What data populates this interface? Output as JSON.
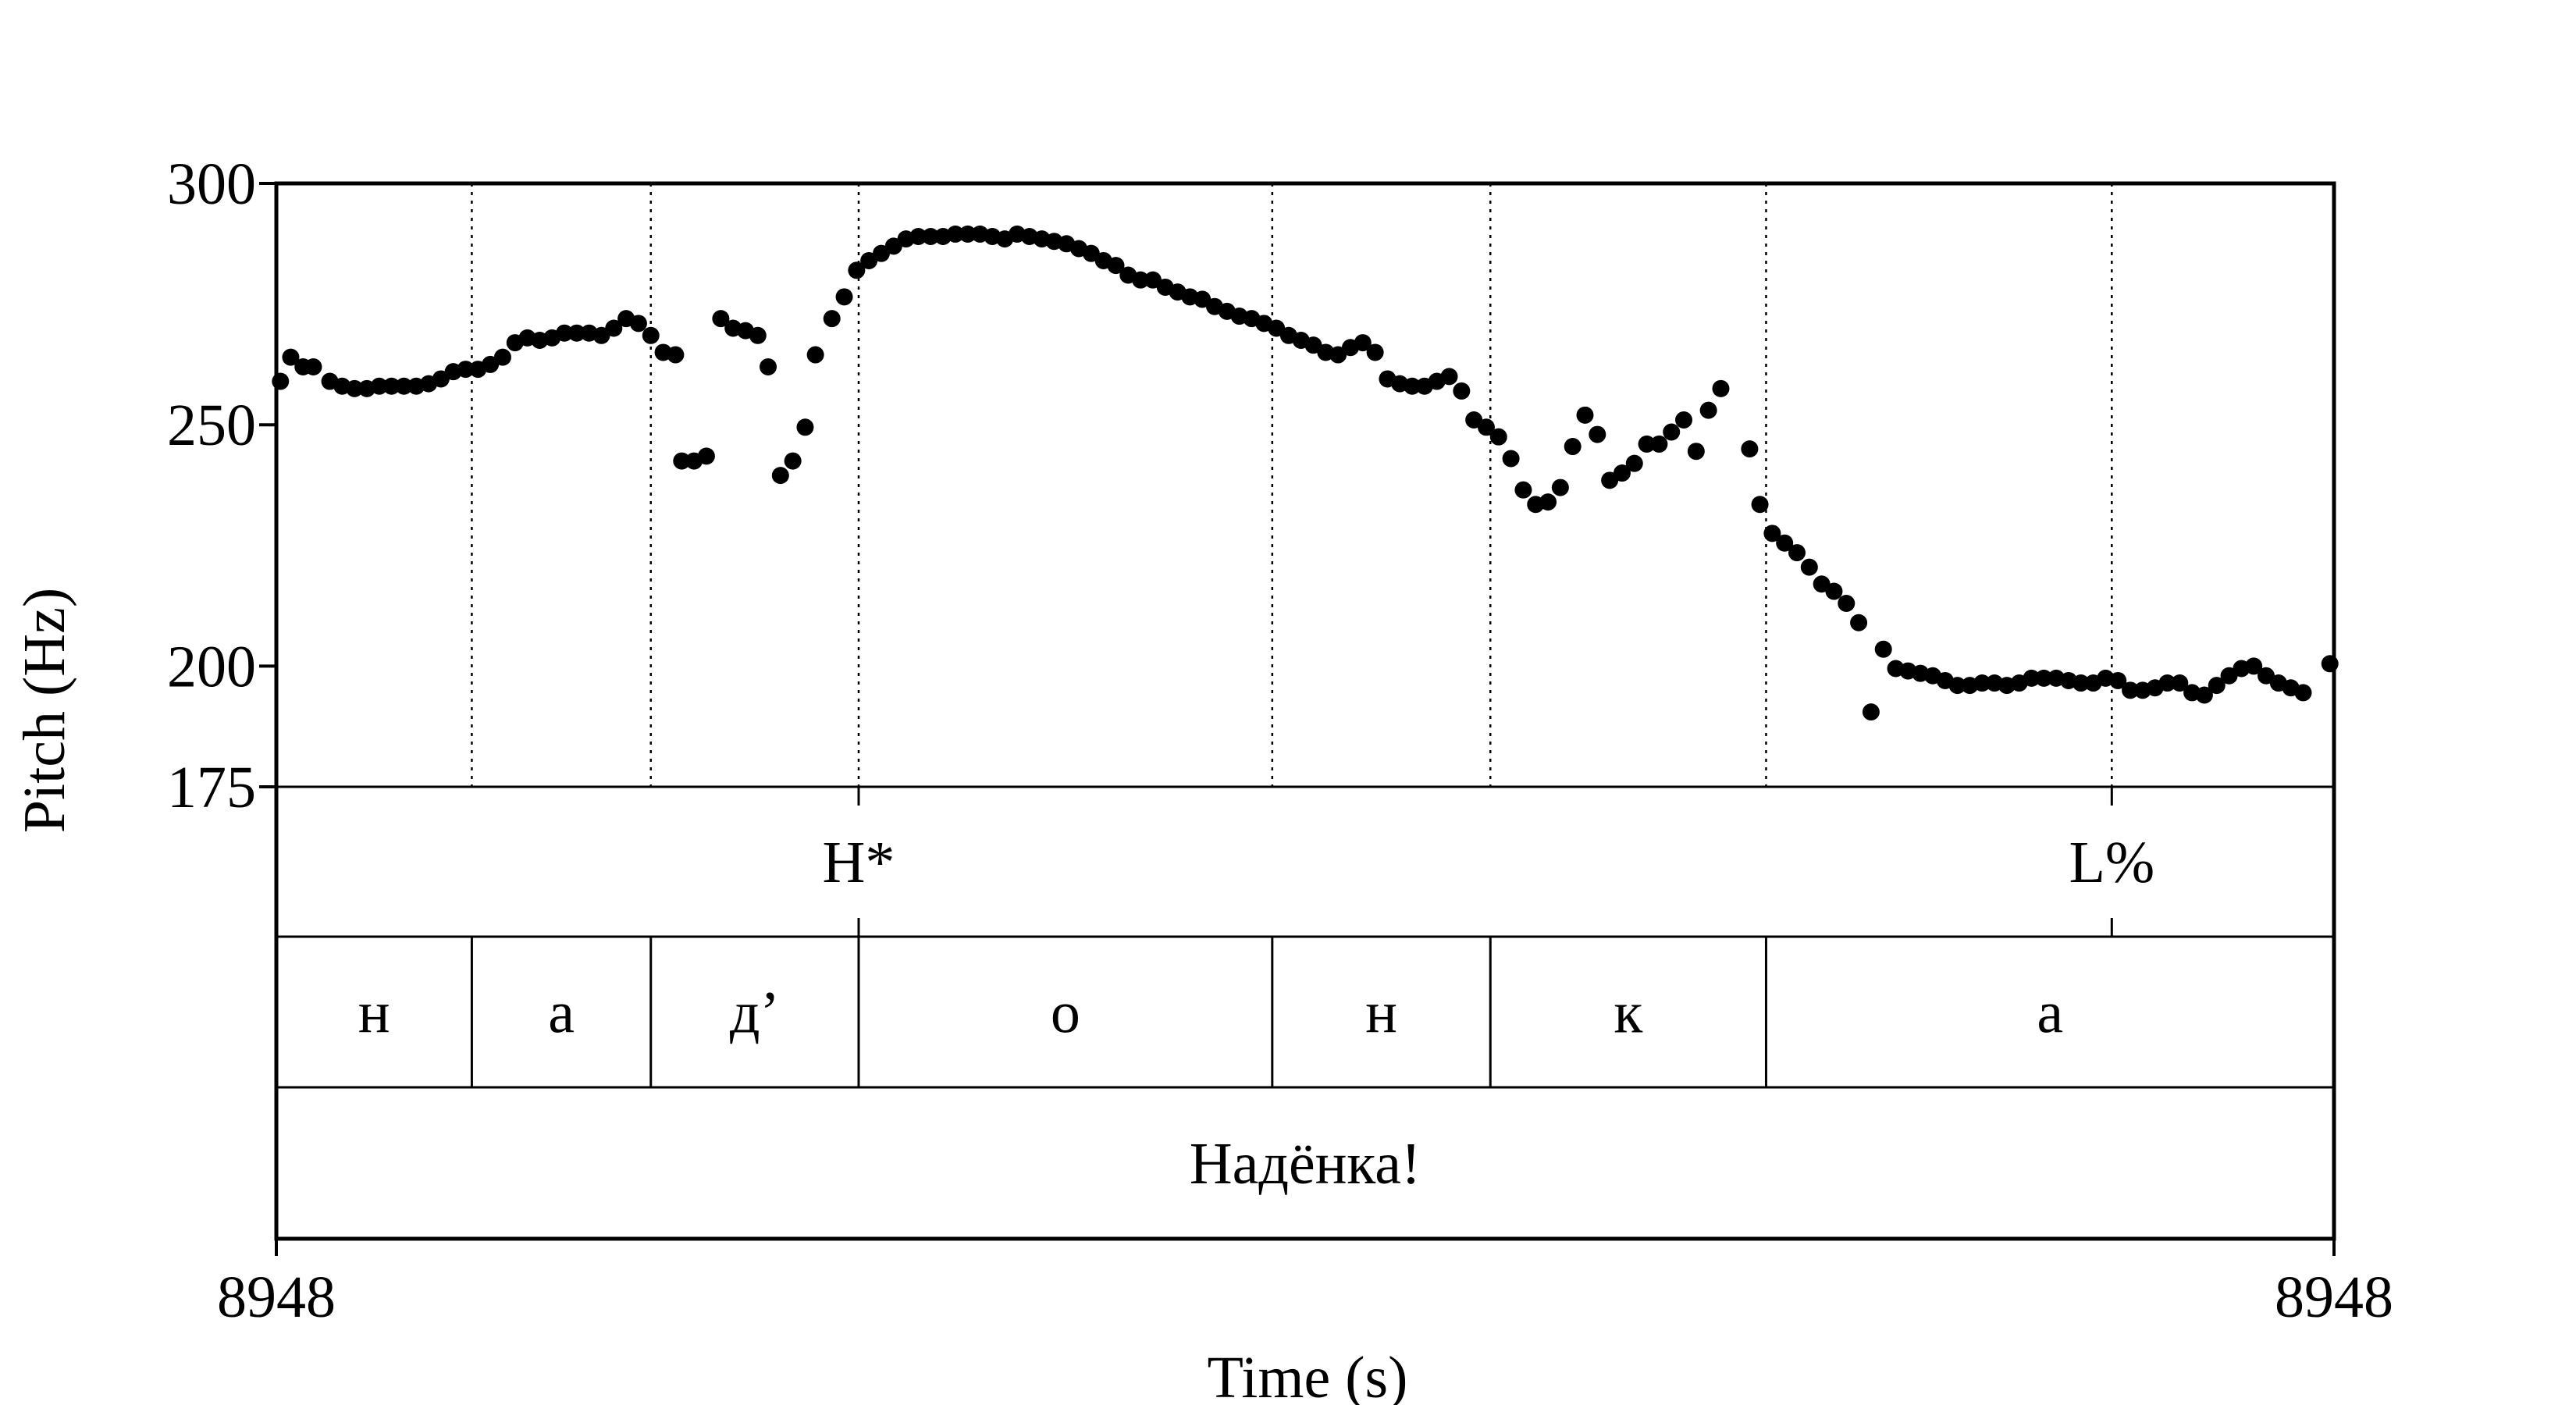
{
  "chart_data": {
    "type": "scatter",
    "xlabel": "Time (s)",
    "ylabel": "Pitch (Hz)",
    "x_tick_labels": [
      "8948",
      "8948"
    ],
    "y_ticks": [
      175,
      200,
      250,
      300
    ],
    "ylim": [
      175,
      300
    ],
    "xlim": [
      0,
      1
    ],
    "series": [
      {
        "color": "#000000",
        "points": [
          [
            0.002,
            259
          ],
          [
            0.007,
            264
          ],
          [
            0.013,
            262
          ],
          [
            0.018,
            262
          ],
          [
            0.026,
            259
          ],
          [
            0.032,
            258
          ],
          [
            0.038,
            257.5
          ],
          [
            0.044,
            257.5
          ],
          [
            0.05,
            258
          ],
          [
            0.056,
            258
          ],
          [
            0.062,
            258
          ],
          [
            0.068,
            258
          ],
          [
            0.074,
            258.5
          ],
          [
            0.08,
            259.5
          ],
          [
            0.086,
            261
          ],
          [
            0.092,
            261.5
          ],
          [
            0.098,
            261.5
          ],
          [
            0.104,
            262.5
          ],
          [
            0.11,
            264
          ],
          [
            0.116,
            267
          ],
          [
            0.122,
            268
          ],
          [
            0.128,
            267.5
          ],
          [
            0.134,
            268
          ],
          [
            0.14,
            269
          ],
          [
            0.146,
            269
          ],
          [
            0.152,
            269
          ],
          [
            0.158,
            268.5
          ],
          [
            0.164,
            270
          ],
          [
            0.17,
            272
          ],
          [
            0.176,
            271
          ],
          [
            0.182,
            268.5
          ],
          [
            0.188,
            265
          ],
          [
            0.194,
            264.5
          ],
          [
            0.197,
            242.5
          ],
          [
            0.203,
            242.5
          ],
          [
            0.209,
            243.5
          ],
          [
            0.216,
            272
          ],
          [
            0.222,
            270
          ],
          [
            0.228,
            269.5
          ],
          [
            0.234,
            268.5
          ],
          [
            0.239,
            262
          ],
          [
            0.245,
            239.5
          ],
          [
            0.251,
            242.5
          ],
          [
            0.257,
            249.5
          ],
          [
            0.262,
            264.5
          ],
          [
            0.27,
            272
          ],
          [
            0.276,
            276.5
          ],
          [
            0.282,
            282
          ],
          [
            0.288,
            284
          ],
          [
            0.294,
            285.5
          ],
          [
            0.3,
            287
          ],
          [
            0.306,
            288.5
          ],
          [
            0.312,
            289
          ],
          [
            0.318,
            289
          ],
          [
            0.324,
            289
          ],
          [
            0.33,
            289.5
          ],
          [
            0.336,
            289.5
          ],
          [
            0.342,
            289.5
          ],
          [
            0.348,
            289
          ],
          [
            0.354,
            288.5
          ],
          [
            0.36,
            289.5
          ],
          [
            0.366,
            289
          ],
          [
            0.372,
            288.5
          ],
          [
            0.378,
            288
          ],
          [
            0.384,
            287.5
          ],
          [
            0.39,
            286.5
          ],
          [
            0.396,
            285.5
          ],
          [
            0.402,
            284
          ],
          [
            0.408,
            283
          ],
          [
            0.414,
            281
          ],
          [
            0.42,
            280
          ],
          [
            0.426,
            280
          ],
          [
            0.432,
            278.5
          ],
          [
            0.438,
            277.5
          ],
          [
            0.444,
            276.5
          ],
          [
            0.45,
            276
          ],
          [
            0.456,
            274.5
          ],
          [
            0.462,
            273.5
          ],
          [
            0.468,
            272.5
          ],
          [
            0.474,
            272
          ],
          [
            0.48,
            271
          ],
          [
            0.486,
            270
          ],
          [
            0.492,
            268.5
          ],
          [
            0.498,
            267.5
          ],
          [
            0.504,
            266.5
          ],
          [
            0.51,
            265
          ],
          [
            0.516,
            264.5
          ],
          [
            0.522,
            266
          ],
          [
            0.528,
            267
          ],
          [
            0.534,
            265
          ],
          [
            0.54,
            259.5
          ],
          [
            0.546,
            258.5
          ],
          [
            0.552,
            258
          ],
          [
            0.558,
            258
          ],
          [
            0.564,
            259
          ],
          [
            0.57,
            260
          ],
          [
            0.576,
            257
          ],
          [
            0.582,
            251
          ],
          [
            0.588,
            249.5
          ],
          [
            0.594,
            247.5
          ],
          [
            0.6,
            243
          ],
          [
            0.606,
            236.5
          ],
          [
            0.612,
            233.5
          ],
          [
            0.618,
            234
          ],
          [
            0.624,
            237
          ],
          [
            0.63,
            245.5
          ],
          [
            0.636,
            252
          ],
          [
            0.642,
            248
          ],
          [
            0.648,
            238.5
          ],
          [
            0.654,
            240
          ],
          [
            0.66,
            242
          ],
          [
            0.666,
            246
          ],
          [
            0.672,
            246
          ],
          [
            0.678,
            248.5
          ],
          [
            0.684,
            251
          ],
          [
            0.69,
            244.5
          ],
          [
            0.696,
            253
          ],
          [
            0.702,
            257.5
          ],
          [
            0.716,
            245
          ],
          [
            0.721,
            233.5
          ],
          [
            0.727,
            227.5
          ],
          [
            0.733,
            225.5
          ],
          [
            0.739,
            223.5
          ],
          [
            0.745,
            220.5
          ],
          [
            0.751,
            217
          ],
          [
            0.757,
            215.5
          ],
          [
            0.763,
            213
          ],
          [
            0.769,
            209
          ],
          [
            0.775,
            190.5
          ],
          [
            0.781,
            203.5
          ],
          [
            0.787,
            199.5
          ],
          [
            0.793,
            199
          ],
          [
            0.799,
            198.5
          ],
          [
            0.805,
            198
          ],
          [
            0.811,
            197
          ],
          [
            0.817,
            196
          ],
          [
            0.823,
            196
          ],
          [
            0.829,
            196.5
          ],
          [
            0.835,
            196.5
          ],
          [
            0.841,
            196
          ],
          [
            0.847,
            196.5
          ],
          [
            0.853,
            197.5
          ],
          [
            0.859,
            197.5
          ],
          [
            0.865,
            197.5
          ],
          [
            0.871,
            197
          ],
          [
            0.877,
            196.5
          ],
          [
            0.883,
            196.5
          ],
          [
            0.889,
            197.5
          ],
          [
            0.895,
            197
          ],
          [
            0.901,
            195
          ],
          [
            0.907,
            195
          ],
          [
            0.913,
            195.5
          ],
          [
            0.919,
            196.5
          ],
          [
            0.925,
            196.5
          ],
          [
            0.931,
            194.5
          ],
          [
            0.937,
            194
          ],
          [
            0.943,
            196
          ],
          [
            0.949,
            198
          ],
          [
            0.955,
            199.5
          ],
          [
            0.961,
            200
          ],
          [
            0.967,
            198
          ],
          [
            0.973,
            196.5
          ],
          [
            0.979,
            195.5
          ],
          [
            0.985,
            194.5
          ],
          [
            0.998,
            200.5
          ]
        ]
      }
    ],
    "pitch_tier_boundaries": [
      0.095,
      0.182,
      0.283,
      0.484,
      0.59,
      0.724,
      0.892
    ],
    "tiers": [
      {
        "name": "tones",
        "type": "point",
        "items": [
          {
            "t": 0.283,
            "label": "H*"
          },
          {
            "t": 0.892,
            "label": "L%"
          }
        ]
      },
      {
        "name": "segments",
        "type": "interval",
        "items": [
          {
            "start": 0.0,
            "end": 0.095,
            "label": "н"
          },
          {
            "start": 0.095,
            "end": 0.182,
            "label": "а"
          },
          {
            "start": 0.182,
            "end": 0.283,
            "label": "д’"
          },
          {
            "start": 0.283,
            "end": 0.484,
            "label": "о"
          },
          {
            "start": 0.484,
            "end": 0.59,
            "label": "н"
          },
          {
            "start": 0.59,
            "end": 0.724,
            "label": "к"
          },
          {
            "start": 0.724,
            "end": 1.0,
            "label": "а"
          }
        ]
      },
      {
        "name": "word",
        "type": "interval",
        "items": [
          {
            "start": 0.0,
            "end": 1.0,
            "label": "Надёнка!"
          }
        ]
      }
    ]
  }
}
